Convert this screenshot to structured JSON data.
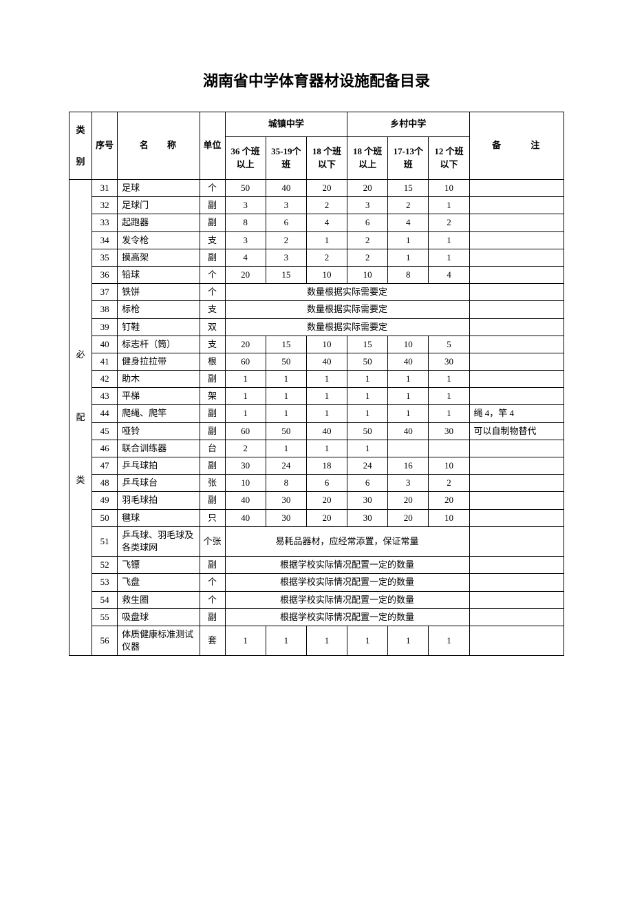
{
  "title": "湖南省中学体育器材设施配备目录",
  "headers": {
    "category": "类别",
    "seq": "序号",
    "name": "名 称",
    "unit": "单位",
    "urban": "城镇中学",
    "rural": "乡村中学",
    "note": "备 注",
    "urban_sub": [
      "36 个班以上",
      "35-19个班",
      "18 个班以下"
    ],
    "rural_sub": [
      "18 个班以上",
      "17-13个班",
      "12 个班以下"
    ]
  },
  "category_label": "必配类",
  "note_qty_actual": "数量根据实际需要定",
  "note_consumable": "易耗品器材，应经常添置，保证常量",
  "note_school_config": "根据学校实际情况配置一定的数量",
  "rows": [
    {
      "seq": "31",
      "name": "足球",
      "unit": "个",
      "v": [
        "50",
        "40",
        "20",
        "20",
        "15",
        "10"
      ],
      "note": ""
    },
    {
      "seq": "32",
      "name": "足球门",
      "unit": "副",
      "v": [
        "3",
        "3",
        "2",
        "3",
        "2",
        "1"
      ],
      "note": ""
    },
    {
      "seq": "33",
      "name": "起跑器",
      "unit": "副",
      "v": [
        "8",
        "6",
        "4",
        "6",
        "4",
        "2"
      ],
      "note": ""
    },
    {
      "seq": "34",
      "name": "发令枪",
      "unit": "支",
      "v": [
        "3",
        "2",
        "1",
        "2",
        "1",
        "1"
      ],
      "note": ""
    },
    {
      "seq": "35",
      "name": "摸高架",
      "unit": "副",
      "v": [
        "4",
        "3",
        "2",
        "2",
        "1",
        "1"
      ],
      "note": ""
    },
    {
      "seq": "36",
      "name": "铅球",
      "unit": "个",
      "v": [
        "20",
        "15",
        "10",
        "10",
        "8",
        "4"
      ],
      "note": ""
    },
    {
      "seq": "37",
      "name": "铁饼",
      "unit": "个",
      "span": "qty_actual",
      "note": ""
    },
    {
      "seq": "38",
      "name": "标枪",
      "unit": "支",
      "span": "qty_actual",
      "note": ""
    },
    {
      "seq": "39",
      "name": "钉鞋",
      "unit": "双",
      "span": "qty_actual",
      "note": ""
    },
    {
      "seq": "40",
      "name": "标志杆（筒）",
      "unit": "支",
      "v": [
        "20",
        "15",
        "10",
        "15",
        "10",
        "5"
      ],
      "note": ""
    },
    {
      "seq": "41",
      "name": "健身拉拉带",
      "unit": "根",
      "v": [
        "60",
        "50",
        "40",
        "50",
        "40",
        "30"
      ],
      "note": ""
    },
    {
      "seq": "42",
      "name": "助木",
      "unit": "副",
      "v": [
        "1",
        "1",
        "1",
        "1",
        "1",
        "1"
      ],
      "note": ""
    },
    {
      "seq": "43",
      "name": "平梯",
      "unit": "架",
      "v": [
        "1",
        "1",
        "1",
        "1",
        "1",
        "1"
      ],
      "note": ""
    },
    {
      "seq": "44",
      "name": "爬绳、爬竿",
      "unit": "副",
      "v": [
        "1",
        "1",
        "1",
        "1",
        "1",
        "1"
      ],
      "note": "绳 4，竿 4"
    },
    {
      "seq": "45",
      "name": "哑铃",
      "unit": "副",
      "v": [
        "60",
        "50",
        "40",
        "50",
        "40",
        "30"
      ],
      "note": "可以自制物替代"
    },
    {
      "seq": "46",
      "name": "联合训练器",
      "unit": "台",
      "v": [
        "2",
        "1",
        "1",
        "1",
        "",
        ""
      ],
      "note": ""
    },
    {
      "seq": "47",
      "name": "乒乓球拍",
      "unit": "副",
      "v": [
        "30",
        "24",
        "18",
        "24",
        "16",
        "10"
      ],
      "note": ""
    },
    {
      "seq": "48",
      "name": "乒乓球台",
      "unit": "张",
      "v": [
        "10",
        "8",
        "6",
        "6",
        "3",
        "2"
      ],
      "note": ""
    },
    {
      "seq": "49",
      "name": "羽毛球拍",
      "unit": "副",
      "v": [
        "40",
        "30",
        "20",
        "30",
        "20",
        "20"
      ],
      "note": ""
    },
    {
      "seq": "50",
      "name": "毽球",
      "unit": "只",
      "v": [
        "40",
        "30",
        "20",
        "30",
        "20",
        "10"
      ],
      "note": ""
    },
    {
      "seq": "51",
      "name": "乒乓球、羽毛球及各类球网",
      "unit": "个张",
      "span": "consumable",
      "note": ""
    },
    {
      "seq": "52",
      "name": "飞镖",
      "unit": "副",
      "span": "school_config",
      "note": ""
    },
    {
      "seq": "53",
      "name": "飞盘",
      "unit": "个",
      "span": "school_config",
      "note": ""
    },
    {
      "seq": "54",
      "name": "救生圈",
      "unit": "个",
      "span": "school_config",
      "note": ""
    },
    {
      "seq": "55",
      "name": "吸盘球",
      "unit": "副",
      "span": "school_config",
      "note": ""
    },
    {
      "seq": "56",
      "name": "体质健康标准测试仪器",
      "unit": "套",
      "v": [
        "1",
        "1",
        "1",
        "1",
        "1",
        "1"
      ],
      "note": ""
    }
  ]
}
